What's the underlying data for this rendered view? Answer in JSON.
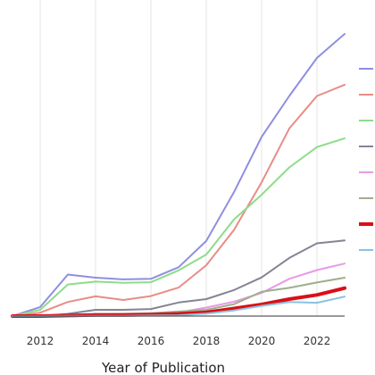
{
  "chart_data": {
    "type": "line",
    "title": "",
    "xlabel": "Year of Publication",
    "ylabel": "",
    "xlim": [
      2011,
      2023
    ],
    "ylim": [
      0,
      1000
    ],
    "grid": "vertical",
    "legend_position": "right",
    "x_ticks": [
      2012,
      2014,
      2016,
      2018,
      2020,
      2022
    ],
    "x": [
      2011,
      2012,
      2013,
      2014,
      2015,
      2016,
      2017,
      2018,
      2019,
      2020,
      2021,
      2022,
      2023
    ],
    "series": [
      {
        "color": "#8e8fe0",
        "width": 2,
        "values": [
          0,
          32,
          147,
          136,
          130,
          132,
          173,
          266,
          439,
          635,
          780,
          915,
          1000
        ]
      },
      {
        "color": "#e88c86",
        "width": 2,
        "values": [
          0,
          12,
          50,
          70,
          57,
          71,
          101,
          180,
          305,
          474,
          665,
          780,
          820
        ]
      },
      {
        "color": "#8edc8a",
        "width": 2,
        "values": [
          0,
          22,
          112,
          122,
          118,
          120,
          162,
          218,
          342,
          430,
          527,
          599,
          630
        ]
      },
      {
        "color": "#848494",
        "width": 2,
        "values": [
          0,
          0,
          8,
          22,
          22,
          25,
          48,
          60,
          92,
          137,
          206,
          258,
          268
        ]
      },
      {
        "color": "#e69ae6",
        "width": 2,
        "values": [
          0,
          0,
          3,
          5,
          6,
          9,
          13,
          30,
          51,
          82,
          132,
          163,
          186
        ]
      },
      {
        "color": "#9fae8c",
        "width": 2,
        "values": [
          0,
          0,
          2,
          7,
          8,
          10,
          16,
          22,
          42,
          86,
          100,
          119,
          136
        ]
      },
      {
        "color": "#d90f18",
        "width": 4,
        "values": [
          0,
          0,
          2,
          4,
          4,
          5,
          8,
          13,
          27,
          41,
          60,
          75,
          99
        ]
      },
      {
        "color": "#8bc2e0",
        "width": 2,
        "values": [
          0,
          0,
          1,
          1,
          1,
          2,
          3,
          9,
          20,
          36,
          50,
          47,
          69
        ]
      }
    ]
  }
}
